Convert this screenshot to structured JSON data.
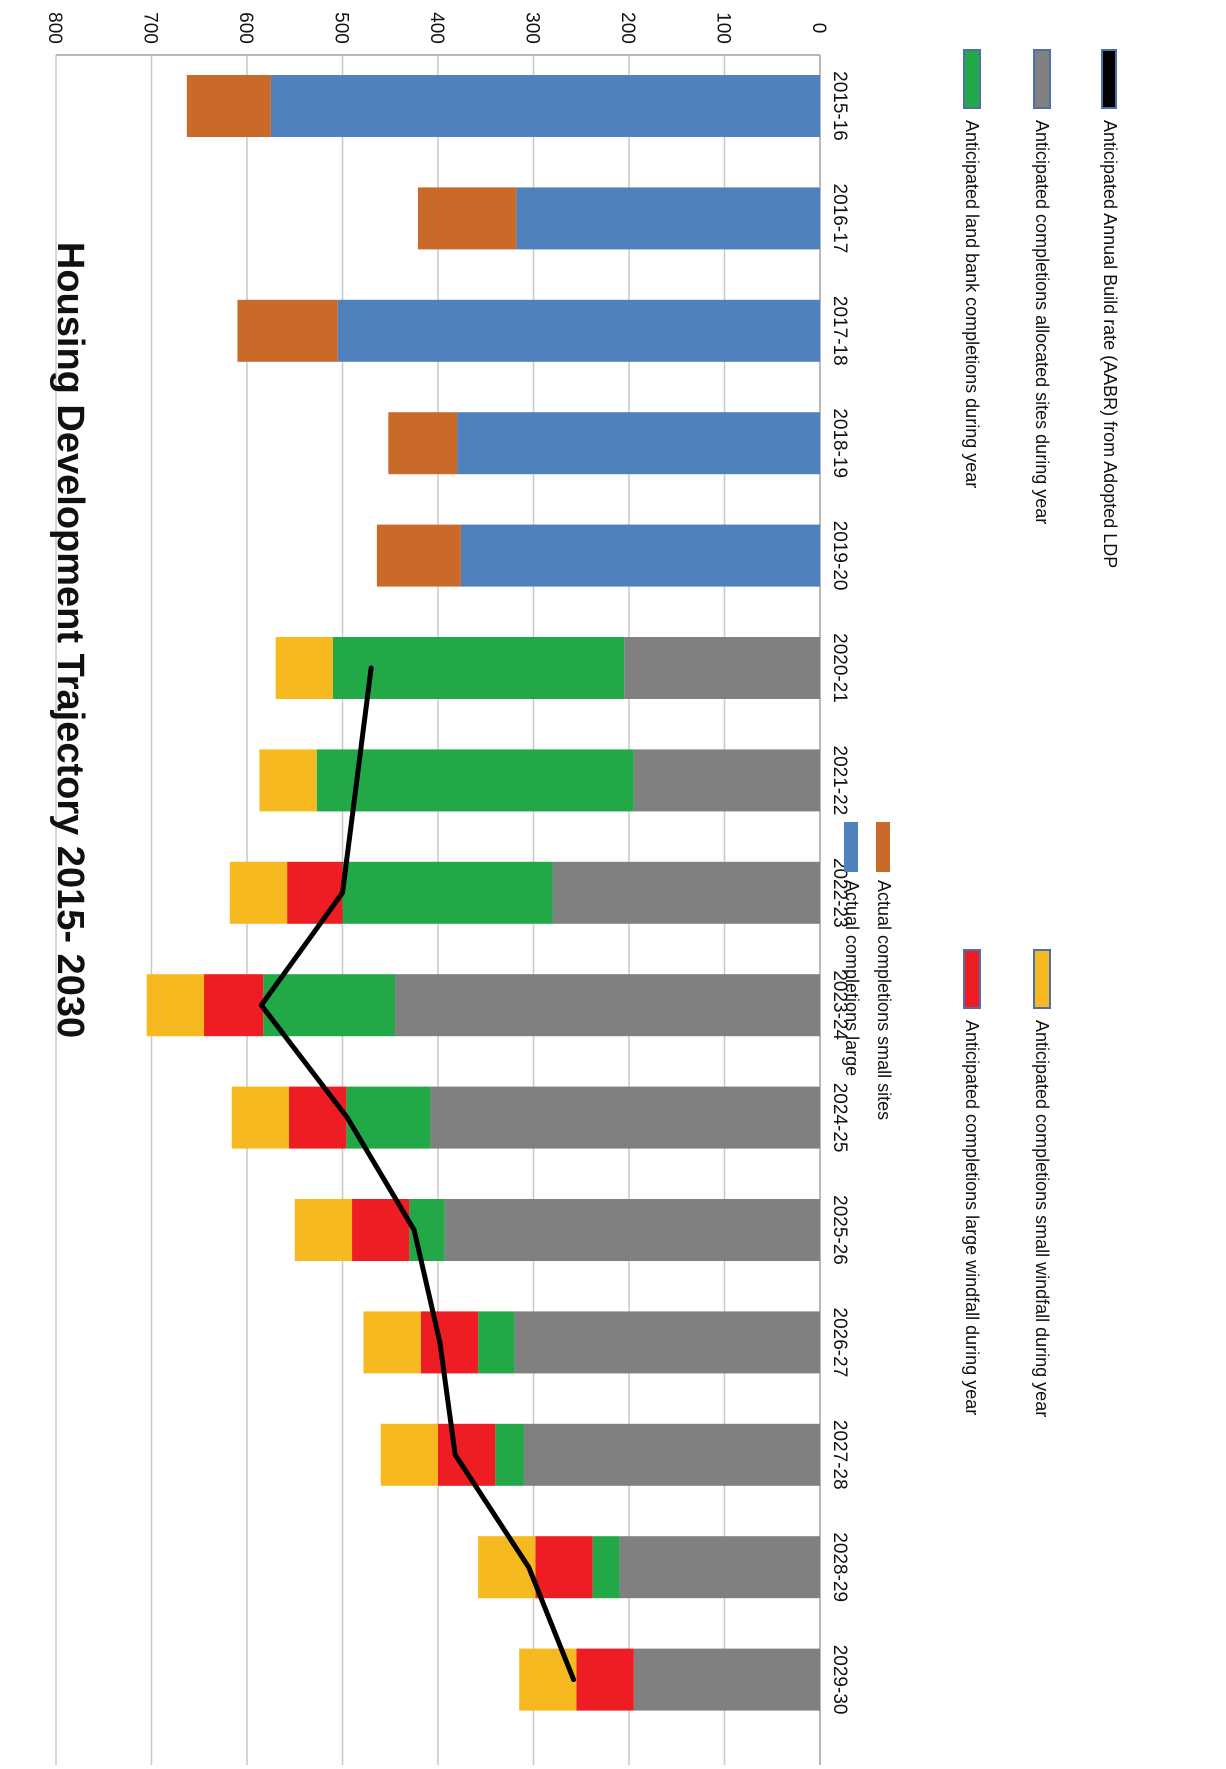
{
  "chart_data": {
    "type": "bar",
    "stacked": true,
    "orientation": "rotated-90-clockwise",
    "title": "Housing Development Trajectory 2015- 2030",
    "categories": [
      "2015-16",
      "2016-17",
      "2017-18",
      "2018-19",
      "2019-20",
      "2020-21",
      "2021-22",
      "2022-23",
      "2023-24",
      "2024-25",
      "2025-26",
      "2026-27",
      "2027-28",
      "2028-29",
      "2029-30"
    ],
    "ylim": [
      0,
      800
    ],
    "yticks": [
      0,
      100,
      200,
      300,
      400,
      500,
      600,
      700,
      800
    ],
    "grid": true,
    "series": [
      {
        "name": "Actual completions large",
        "color": "#4f81bd",
        "values": [
          575,
          318,
          505,
          380,
          376,
          0,
          0,
          0,
          0,
          0,
          0,
          0,
          0,
          0,
          0
        ]
      },
      {
        "name": "Actual completions small sites",
        "color": "#c96a2a",
        "values": [
          88,
          103,
          105,
          72,
          88,
          0,
          0,
          0,
          0,
          0,
          0,
          0,
          0,
          0,
          0
        ]
      },
      {
        "name": "Anticipated completions allocated sites during year",
        "color": "#808080",
        "values": [
          0,
          0,
          0,
          0,
          0,
          205,
          195,
          280,
          445,
          408,
          393,
          320,
          310,
          210,
          195
        ]
      },
      {
        "name": "Anticipated land bank completions during year",
        "color": "#22a846",
        "values": [
          0,
          0,
          0,
          0,
          0,
          305,
          332,
          220,
          138,
          88,
          37,
          38,
          30,
          28,
          0
        ]
      },
      {
        "name": "Anticipated completions large windfall during year",
        "color": "#ee1d24",
        "values": [
          0,
          0,
          0,
          0,
          0,
          0,
          0,
          58,
          62,
          60,
          60,
          60,
          60,
          60,
          60
        ]
      },
      {
        "name": "Anticipated completions small windfall during year",
        "color": "#f6b920",
        "values": [
          0,
          0,
          0,
          0,
          0,
          60,
          60,
          60,
          60,
          60,
          60,
          60,
          60,
          60,
          60
        ]
      }
    ],
    "line": {
      "name": "Anticipated Annual Build rate (AABR) from Adopted LDP",
      "color": "#000000",
      "values": [
        null,
        null,
        null,
        null,
        null,
        470,
        485,
        500,
        585,
        495,
        425,
        398,
        382,
        305,
        258
      ]
    },
    "legend": {
      "placement": "bottom",
      "inline_entries": [
        {
          "label": "Actual completions large",
          "color": "#4f81bd"
        },
        {
          "label": "Actual completions small sites",
          "color": "#c96a2a"
        }
      ],
      "entries": [
        {
          "label": "Anticipated land bank completions during year",
          "color": "#22a846"
        },
        {
          "label": "Anticipated completions allocated sites during year",
          "color": "#808080"
        },
        {
          "label": "Anticipated Annual Build rate (AABR) from Adopted LDP",
          "color": "#000000"
        },
        {
          "label": "Anticipated completions large windfall during year",
          "color": "#ee1d24"
        },
        {
          "label": "Anticipated completions small windfall during year",
          "color": "#f6b920"
        }
      ]
    }
  }
}
